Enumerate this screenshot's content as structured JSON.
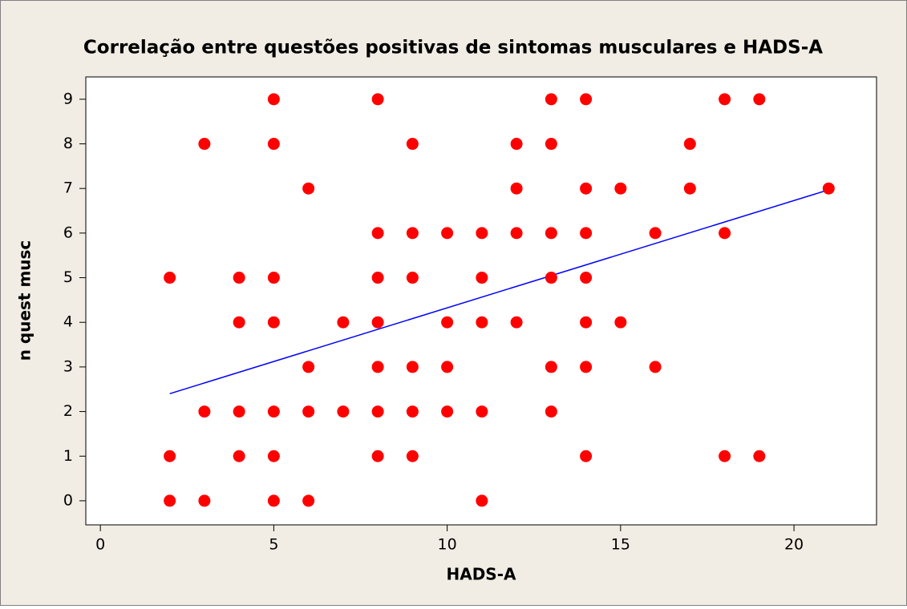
{
  "chart_data": {
    "type": "scatter",
    "title": "Correlação entre  questões positivas de sintomas musculares e HADS-A",
    "xlabel": "HADS-A",
    "ylabel": "n quest musc",
    "x": [
      5,
      8,
      13,
      14,
      18,
      19,
      3,
      5,
      9,
      12,
      13,
      17,
      6,
      12,
      14,
      15,
      17,
      21,
      8,
      9,
      10,
      11,
      12,
      13,
      14,
      16,
      18,
      2,
      4,
      5,
      8,
      9,
      11,
      13,
      14,
      4,
      5,
      7,
      8,
      10,
      11,
      12,
      14,
      15,
      6,
      8,
      9,
      10,
      13,
      14,
      16,
      3,
      4,
      5,
      6,
      7,
      8,
      9,
      10,
      11,
      13,
      2,
      4,
      5,
      8,
      9,
      14,
      18,
      19,
      2,
      3,
      5,
      6,
      11
    ],
    "y": [
      9,
      9,
      9,
      9,
      9,
      9,
      8,
      8,
      8,
      8,
      8,
      8,
      7,
      7,
      7,
      7,
      7,
      7,
      6,
      6,
      6,
      6,
      6,
      6,
      6,
      6,
      6,
      5,
      5,
      5,
      5,
      5,
      5,
      5,
      5,
      4,
      4,
      4,
      4,
      4,
      4,
      4,
      4,
      4,
      3,
      3,
      3,
      3,
      3,
      3,
      3,
      2,
      2,
      2,
      2,
      2,
      2,
      2,
      2,
      2,
      2,
      1,
      1,
      1,
      1,
      1,
      1,
      1,
      1,
      0,
      0,
      0,
      0,
      0
    ],
    "color": "#ff0000",
    "fit_line": {
      "x": [
        2,
        21
      ],
      "y": [
        2.4,
        6.97
      ],
      "color": "#0000ff"
    },
    "xlim": [
      -0.42,
      22.38
    ],
    "ylim": [
      -0.54,
      9.5
    ],
    "xticks": [
      0,
      5,
      10,
      15,
      20
    ],
    "yticks": [
      0,
      1,
      2,
      3,
      4,
      5,
      6,
      7,
      8,
      9
    ]
  }
}
